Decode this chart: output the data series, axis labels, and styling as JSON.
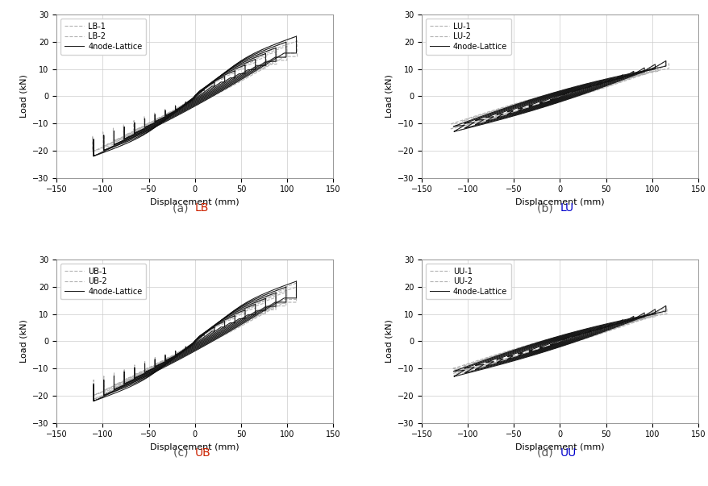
{
  "subplots": [
    {
      "title_prefix": "(a)  ",
      "title_suffix": "LB",
      "suffix_color": "#cc2200",
      "label1": "LB-1",
      "label2": "LB-2",
      "label3": "4node-Lattice",
      "loop_type": "LB"
    },
    {
      "title_prefix": "(b)  ",
      "title_suffix": "LU",
      "suffix_color": "#0000cc",
      "label1": "LU-1",
      "label2": "LU-2",
      "label3": "4node-Lattice",
      "loop_type": "LU"
    },
    {
      "title_prefix": "(c)  ",
      "title_suffix": "UB",
      "suffix_color": "#cc2200",
      "label1": "UB-1",
      "label2": "UB-2",
      "label3": "4node-Lattice",
      "loop_type": "UB"
    },
    {
      "title_prefix": "(d)  ",
      "title_suffix": "UU",
      "suffix_color": "#0000cc",
      "label1": "UU-1",
      "label2": "UU-2",
      "label3": "4node-Lattice",
      "loop_type": "UU"
    }
  ],
  "xlim": [
    -150,
    150
  ],
  "ylim": [
    -30,
    30
  ],
  "xticks": [
    -150,
    -100,
    -50,
    0,
    50,
    100,
    150
  ],
  "yticks": [
    -30,
    -20,
    -10,
    0,
    10,
    20,
    30
  ],
  "xlabel": "Displacement (mm)",
  "ylabel": "Load (kN)",
  "exp_color": "#aaaaaa",
  "model_color": "#111111",
  "grid_color": "#cccccc",
  "background_color": "#ffffff",
  "label_fontsize": 8,
  "tick_fontsize": 7,
  "legend_fontsize": 7,
  "caption_fontsize": 10,
  "caption_gray": "#555555"
}
